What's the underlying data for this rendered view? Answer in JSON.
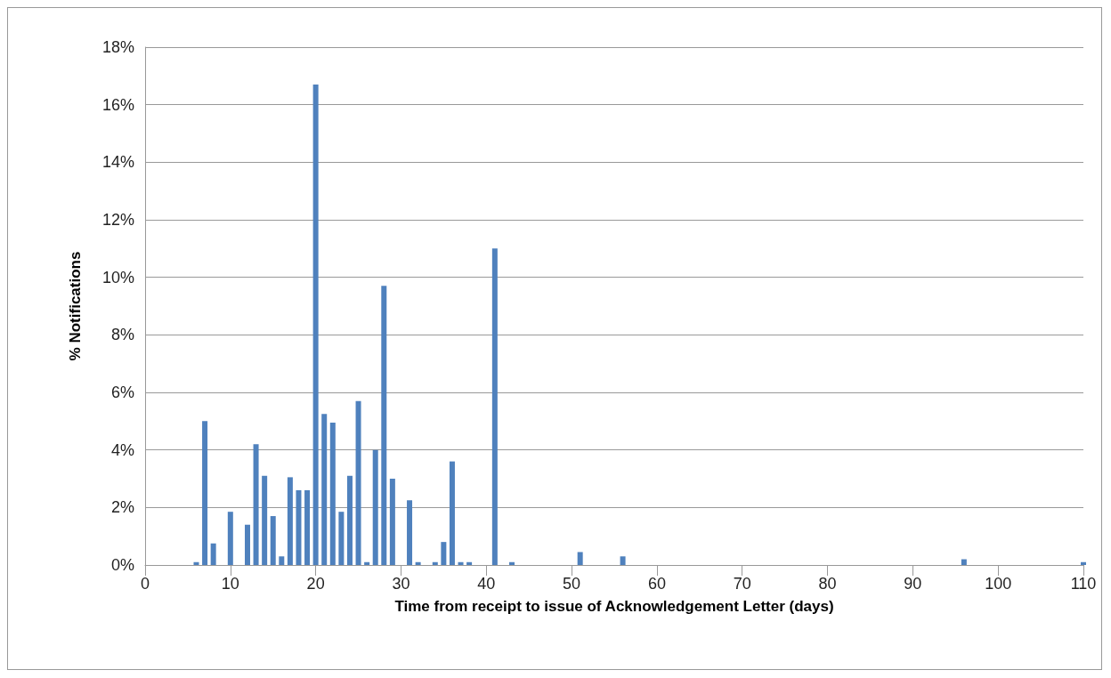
{
  "chart_data": {
    "type": "bar",
    "xlabel": "Time from receipt to issue of Acknowledgement Letter (days)",
    "ylabel": "% Notifications",
    "x": [
      6,
      7,
      8,
      10,
      12,
      13,
      14,
      15,
      16,
      17,
      18,
      19,
      20,
      21,
      22,
      23,
      24,
      25,
      26,
      27,
      28,
      29,
      31,
      32,
      34,
      35,
      36,
      37,
      38,
      41,
      43,
      51,
      56,
      96,
      110
    ],
    "values": [
      0.1,
      5.0,
      0.75,
      1.85,
      1.4,
      4.2,
      3.1,
      1.7,
      0.3,
      3.05,
      2.6,
      2.6,
      16.7,
      5.25,
      4.95,
      1.85,
      3.1,
      5.7,
      0.1,
      4.0,
      9.7,
      3.0,
      2.25,
      0.1,
      0.1,
      0.8,
      3.6,
      0.1,
      0.1,
      11.0,
      0.1,
      0.45,
      0.3,
      0.2,
      0.1
    ],
    "color": "#4f81bd",
    "xlim": [
      0,
      110
    ],
    "xticks": [
      0,
      10,
      20,
      30,
      40,
      50,
      60,
      70,
      80,
      90,
      100,
      110
    ],
    "ylim": [
      0,
      18
    ],
    "yticks": [
      {
        "value": 0,
        "label": "0%"
      },
      {
        "value": 2,
        "label": "2%"
      },
      {
        "value": 4,
        "label": "4%"
      },
      {
        "value": 6,
        "label": "6%"
      },
      {
        "value": 8,
        "label": "8%"
      },
      {
        "value": 10,
        "label": "10%"
      },
      {
        "value": 12,
        "label": "12%"
      },
      {
        "value": 14,
        "label": "14%"
      },
      {
        "value": 16,
        "label": "16%"
      },
      {
        "value": 18,
        "label": "18%"
      }
    ],
    "grid": "y"
  }
}
